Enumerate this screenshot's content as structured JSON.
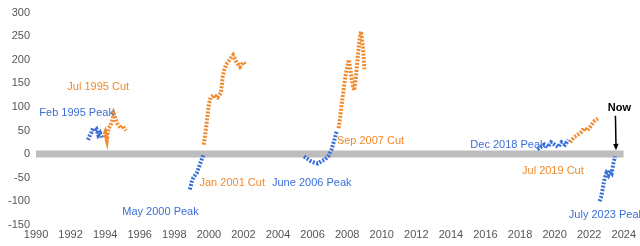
{
  "chart_data": {
    "type": "line",
    "xlim": [
      1990,
      2024
    ],
    "xticks": [
      1990,
      1992,
      1994,
      1996,
      1998,
      2000,
      2002,
      2004,
      2006,
      2008,
      2010,
      2012,
      2014,
      2016,
      2018,
      2020,
      2022,
      2024
    ],
    "ylim": [
      -150,
      300
    ],
    "yticks": [
      -150,
      -100,
      -50,
      0,
      50,
      100,
      150,
      200,
      250,
      300
    ],
    "grid": false,
    "series": [
      {
        "color": "#bdbdbd",
        "line_style": "solid",
        "x": [
          1990,
          2024
        ],
        "values": [
          0,
          0
        ]
      },
      {
        "color": "#3a6fd8",
        "line_style": "dotted",
        "x": [
          1993.0,
          1993.1,
          1993.2,
          1993.3,
          1993.4,
          1993.5,
          1993.6,
          1993.7,
          1993.8
        ],
        "values": [
          30,
          38,
          45,
          55,
          48,
          52,
          40,
          45,
          35
        ]
      },
      {
        "color": "#f0892b",
        "line_style": "dotted",
        "x": [
          1993.9,
          1994.0,
          1994.1,
          1994.2,
          1994.3,
          1994.4,
          1994.5,
          1994.6,
          1994.7,
          1994.8,
          1994.9,
          1995.0,
          1995.1,
          1995.2
        ],
        "values": [
          35,
          45,
          30,
          55,
          60,
          70,
          85,
          75,
          65,
          60,
          55,
          60,
          55,
          50
        ]
      },
      {
        "color": "#3a6fd8",
        "line_style": "dotted",
        "x": [
          1998.9,
          1999.0,
          1999.1,
          1999.2,
          1999.3,
          1999.4,
          1999.5,
          1999.6,
          1999.7
        ],
        "values": [
          -75,
          -60,
          -50,
          -45,
          -40,
          -30,
          -20,
          -10,
          0
        ]
      },
      {
        "color": "#f0892b",
        "line_style": "dotted",
        "x": [
          1999.7,
          1999.8,
          1999.9,
          2000.0,
          2000.1,
          2000.3,
          2000.5,
          2000.7,
          2000.8,
          2000.9,
          2001.0,
          2001.2,
          2001.4,
          2001.6,
          2001.8,
          2002.0,
          2002.1
        ],
        "values": [
          20,
          45,
          75,
          105,
          120,
          125,
          120,
          130,
          165,
          180,
          190,
          200,
          210,
          195,
          185,
          195,
          190
        ]
      },
      {
        "color": "#3a6fd8",
        "line_style": "dotted",
        "x": [
          2005.5,
          2005.7,
          2005.9,
          2006.1,
          2006.3,
          2006.5,
          2006.7,
          2006.9,
          2007.1,
          2007.3,
          2007.4
        ],
        "values": [
          -5,
          -10,
          -15,
          -18,
          -20,
          -15,
          -12,
          -5,
          10,
          35,
          50
        ]
      },
      {
        "color": "#f0892b",
        "line_style": "dotted",
        "x": [
          2007.5,
          2007.6,
          2007.7,
          2007.8,
          2007.9,
          2008.0,
          2008.1,
          2008.2,
          2008.3,
          2008.4,
          2008.5,
          2008.6,
          2008.7,
          2008.8,
          2008.9,
          2009.0
        ],
        "values": [
          55,
          80,
          110,
          140,
          165,
          185,
          200,
          175,
          150,
          135,
          160,
          200,
          240,
          260,
          230,
          180
        ]
      },
      {
        "color": "#3a6fd8",
        "line_style": "dotted",
        "x": [
          2019.0,
          2019.2,
          2019.4,
          2019.6,
          2019.8,
          2020.0,
          2020.2,
          2020.4,
          2020.6,
          2020.8
        ],
        "values": [
          10,
          15,
          20,
          15,
          25,
          20,
          15,
          25,
          20,
          30
        ]
      },
      {
        "color": "#f0892b",
        "line_style": "dotted",
        "x": [
          2020.9,
          2021.1,
          2021.3,
          2021.5,
          2021.7,
          2021.9,
          2022.1,
          2022.3,
          2022.5
        ],
        "values": [
          25,
          35,
          40,
          45,
          55,
          50,
          60,
          70,
          75
        ]
      },
      {
        "color": "#3a6fd8",
        "line_style": "dotted",
        "x": [
          2022.6,
          2022.7,
          2022.8,
          2022.9,
          2023.0,
          2023.1,
          2023.2,
          2023.3,
          2023.4,
          2023.5
        ],
        "values": [
          -100,
          -90,
          -70,
          -50,
          -40,
          -45,
          -35,
          -40,
          -20,
          -5
        ]
      }
    ],
    "annotations": [
      {
        "text": "Jul 1995 Cut",
        "color": "#f0892b"
      },
      {
        "text": "Feb 1995 Peak",
        "color": "#3a6fd8"
      },
      {
        "text": "Jan 2001 Cut",
        "color": "#f0892b"
      },
      {
        "text": "May 2000 Peak",
        "color": "#3a6fd8"
      },
      {
        "text": "Sep 2007 Cut",
        "color": "#f0892b"
      },
      {
        "text": "June 2006 Peak",
        "color": "#3a6fd8"
      },
      {
        "text": "Dec 2018 Peak",
        "color": "#3a6fd8"
      },
      {
        "text": "Jul 2019 Cut",
        "color": "#f0892b"
      },
      {
        "text": "Now",
        "color": "#000000"
      },
      {
        "text": "July 2023 Peak",
        "color": "#3a6fd8"
      }
    ]
  }
}
